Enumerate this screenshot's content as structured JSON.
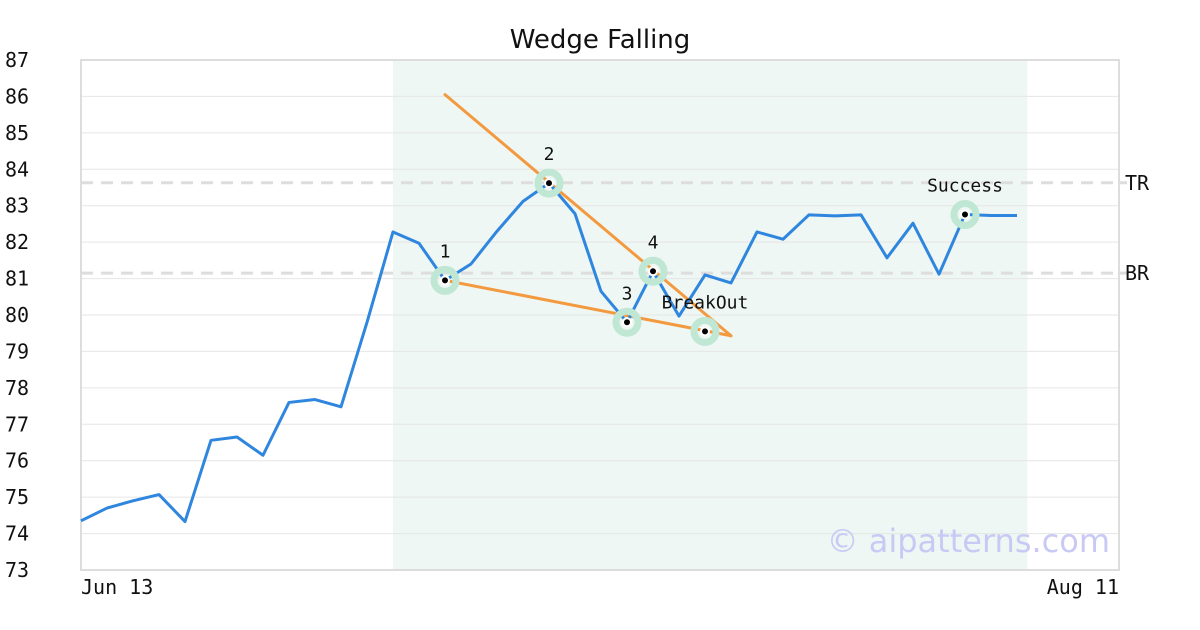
{
  "chart_data": {
    "type": "line",
    "title": "Wedge Falling",
    "ylim": [
      73,
      87
    ],
    "yticks": [
      73,
      74,
      75,
      76,
      77,
      78,
      79,
      80,
      81,
      82,
      83,
      84,
      85,
      86,
      87
    ],
    "x_labels": {
      "start": "Jun 13",
      "end": "Aug 11"
    },
    "grid": true,
    "series": [
      {
        "color": "#2f86de",
        "values": [
          74.35,
          74.7,
          74.9,
          75.07,
          74.33,
          76.56,
          76.65,
          76.15,
          77.6,
          77.68,
          77.48,
          79.8,
          82.28,
          81.97,
          80.95,
          81.4,
          82.3,
          83.12,
          83.62,
          82.78,
          80.65,
          79.8,
          81.2,
          79.97,
          81.1,
          80.88,
          82.28,
          82.08,
          82.75,
          82.72,
          82.75,
          81.57,
          82.52,
          81.12,
          82.76,
          82.73,
          82.73
        ]
      }
    ],
    "reference_lines": [
      {
        "label": "TR",
        "value": 83.63,
        "color": "#dddddd"
      },
      {
        "label": "BR",
        "value": 81.15,
        "color": "#dddddd"
      }
    ],
    "pattern_region": {
      "start_index": 12,
      "end_index": 36.4,
      "color": "#eef7f3"
    },
    "trend_lines": [
      {
        "from": [
          14,
          86.05
        ],
        "to": [
          25,
          79.43
        ],
        "color": "#f39a40"
      },
      {
        "from": [
          14,
          80.95
        ],
        "to": [
          25,
          79.43
        ],
        "color": "#f39a40"
      }
    ],
    "markers": [
      {
        "label": "1",
        "index": 14,
        "value": 80.95,
        "label_pos": "above"
      },
      {
        "label": "2",
        "index": 18,
        "value": 83.62,
        "label_pos": "above"
      },
      {
        "label": "3",
        "index": 21,
        "value": 79.8,
        "label_pos": "above"
      },
      {
        "label": "4",
        "index": 22,
        "value": 81.2,
        "label_pos": "above"
      },
      {
        "label": "BreakOut",
        "index": 24,
        "value": 79.55,
        "label_pos": "above"
      },
      {
        "label": "Success",
        "index": 34,
        "value": 82.76,
        "label_pos": "above"
      }
    ],
    "watermark": "© aipatterns.com"
  },
  "colors": {
    "line": "#2f86de",
    "trend": "#f39a40",
    "region": "#eef7f3",
    "marker_ring": "#bfe7d4",
    "grid": "#e6e6e6",
    "frame": "#dddddd",
    "watermark": "#c9c9f5"
  }
}
